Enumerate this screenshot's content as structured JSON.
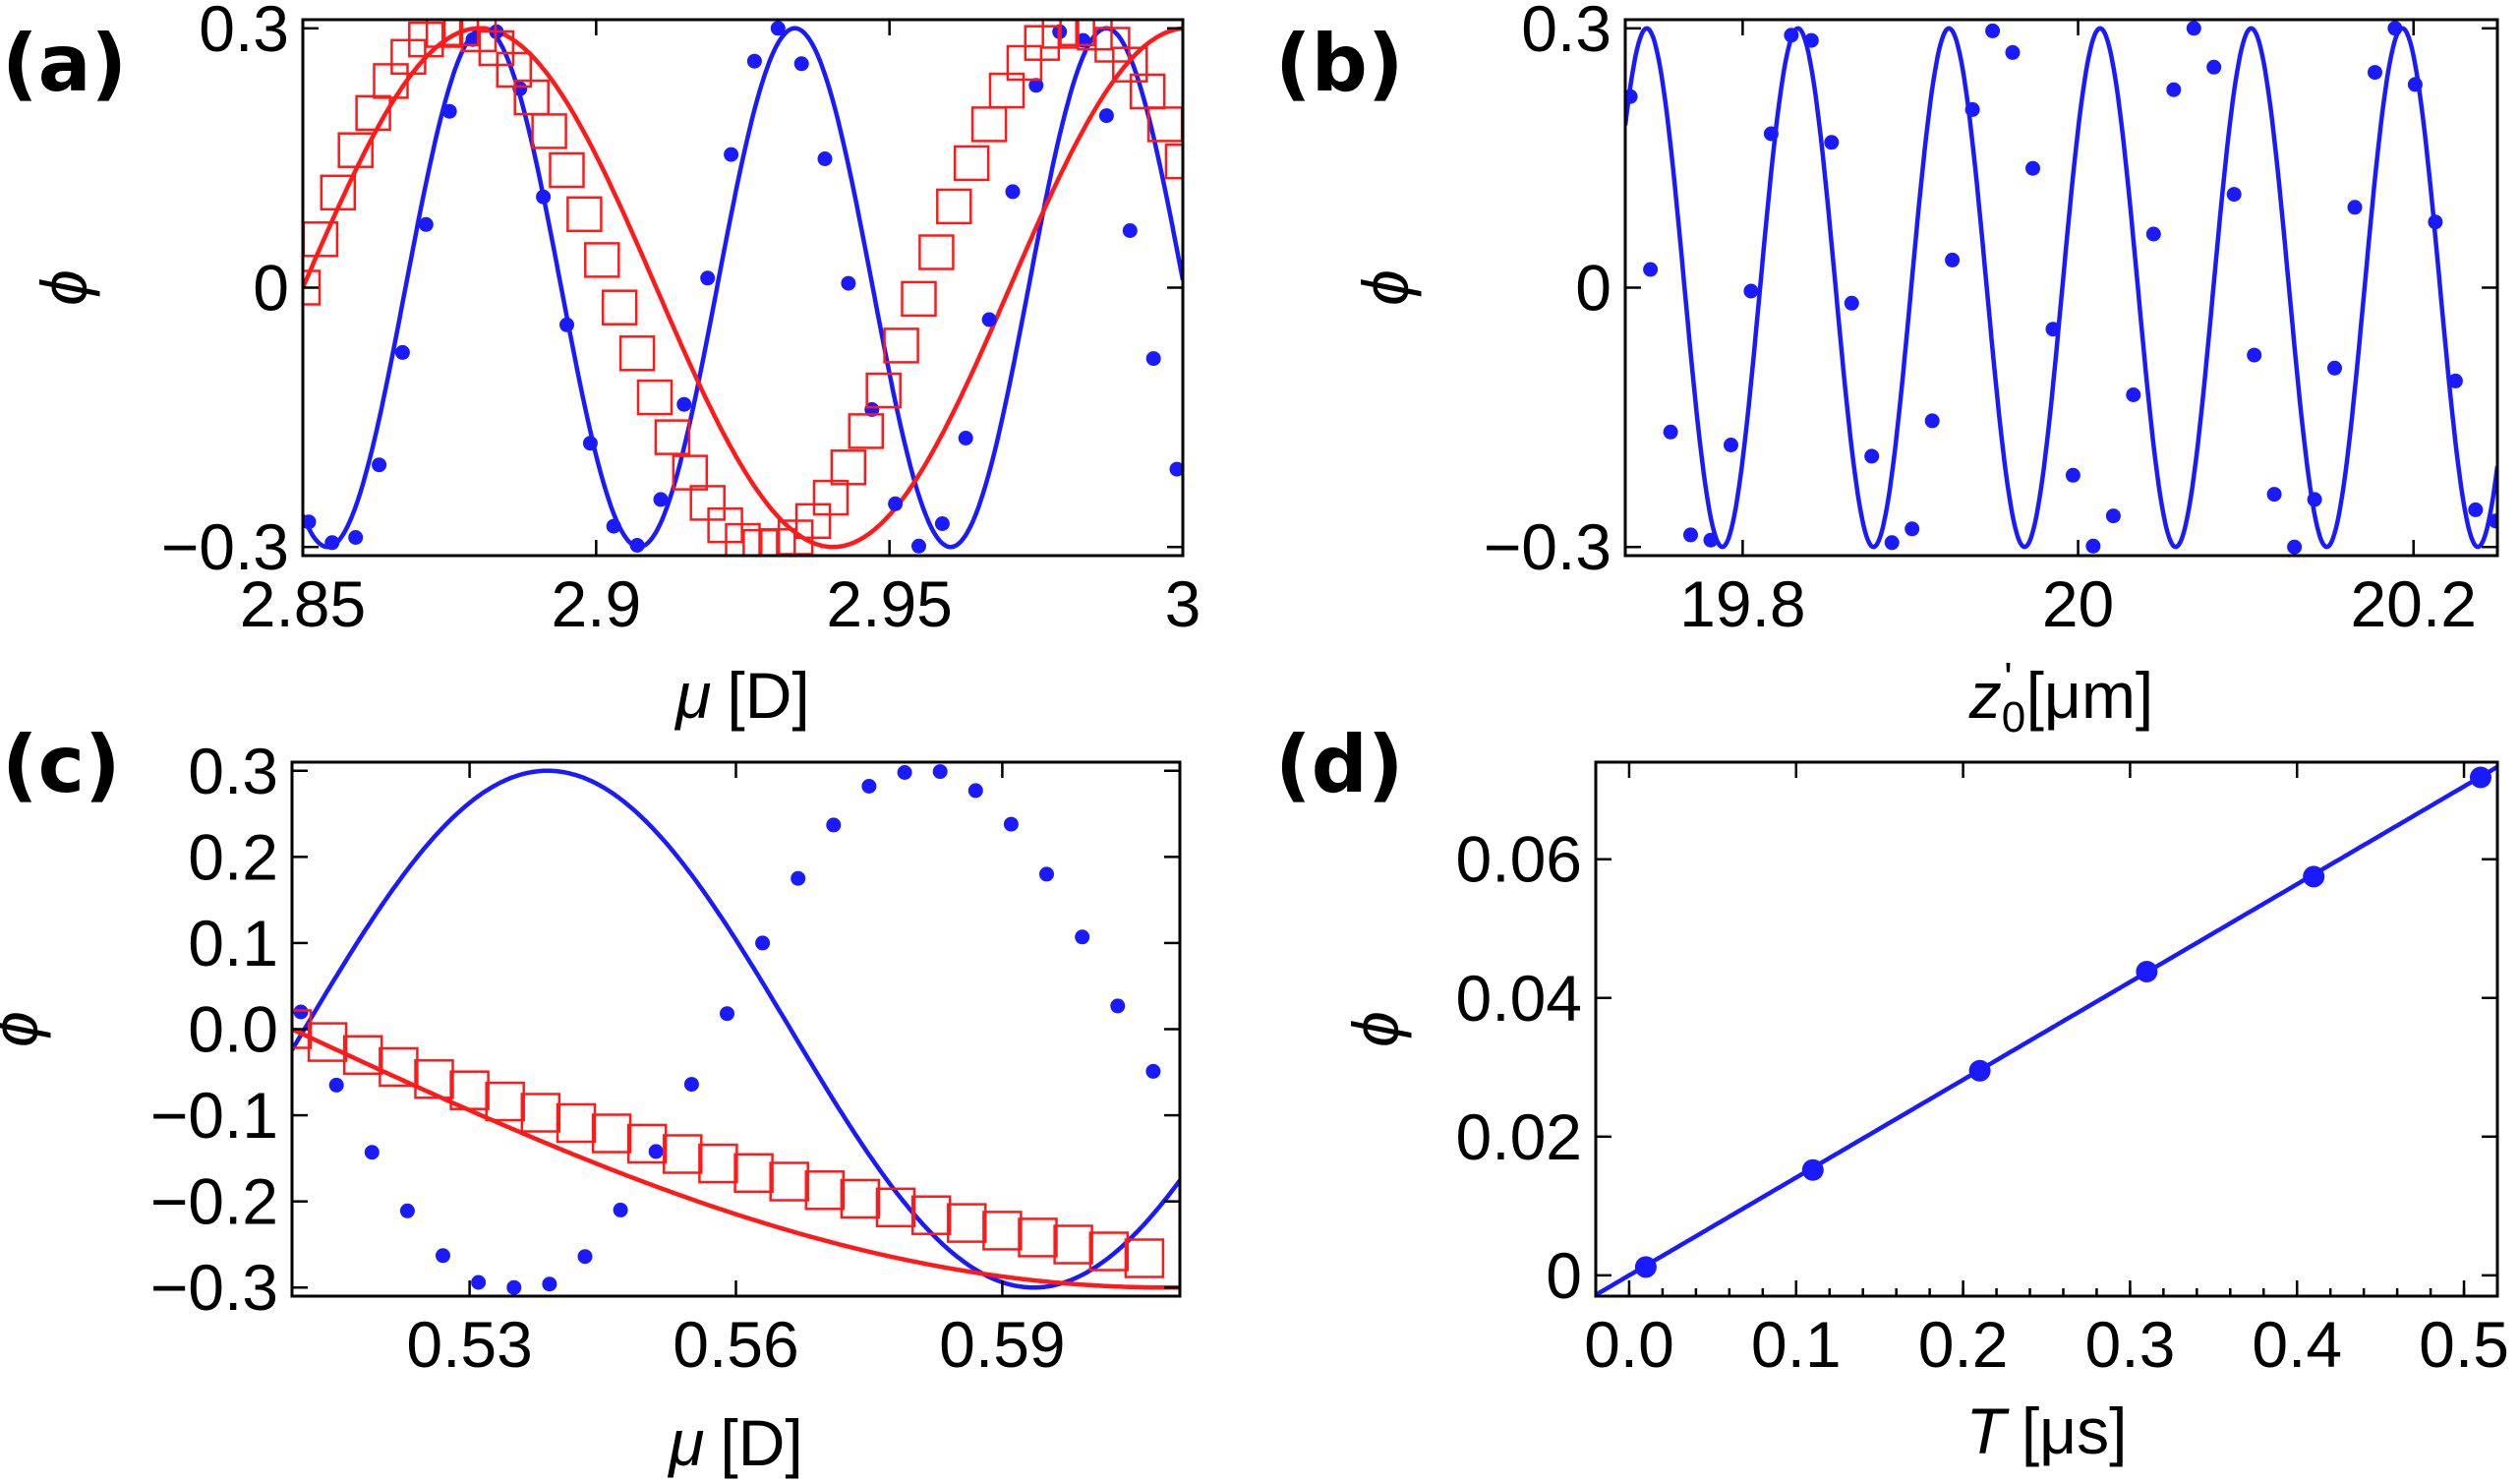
{
  "colors": {
    "blue": "#1a1aff",
    "red": "#ff1a1a",
    "axis": "#000000"
  },
  "chart_data": [
    {
      "id": "a",
      "panel_label": "(a)",
      "type": "line",
      "xlabel_symbol": "μ",
      "xlabel_unit": "[D]",
      "ylabel": "ϕ",
      "xlim": [
        2.85,
        3.0
      ],
      "ylim": [
        -0.31,
        0.31
      ],
      "xticks": [
        2.85,
        2.9,
        2.95,
        3.0
      ],
      "xtick_labels": [
        "2.85",
        "2.9",
        "2.95",
        "3"
      ],
      "yticks": [
        -0.3,
        0,
        0.3
      ],
      "ytick_labels": [
        "−0.3",
        "0",
        "0.3"
      ],
      "series": [
        {
          "name": "blue-dots",
          "color": "#1a1aff",
          "marker": "dot",
          "x": [
            2.851,
            2.855,
            2.859,
            2.863,
            2.867,
            2.871,
            2.875,
            2.879,
            2.883,
            2.887,
            2.891,
            2.895,
            2.899,
            2.903,
            2.907,
            2.911,
            2.915,
            2.919,
            2.923,
            2.927,
            2.931,
            2.935,
            2.939,
            2.943,
            2.947,
            2.951,
            2.955,
            2.959,
            2.963,
            2.967,
            2.971,
            2.975,
            2.979,
            2.983,
            2.987,
            2.991,
            2.995,
            2.999
          ],
          "y": [
            -0.271,
            -0.295,
            -0.289,
            -0.205,
            -0.075,
            0.073,
            0.204,
            0.287,
            0.296,
            0.23,
            0.105,
            -0.043,
            -0.18,
            -0.276,
            -0.298,
            -0.245,
            -0.135,
            0.011,
            0.154,
            0.262,
            0.3,
            0.259,
            0.149,
            0.005,
            -0.141,
            -0.25,
            -0.299,
            -0.273,
            -0.174,
            -0.037,
            0.111,
            0.234,
            0.296,
            0.286,
            0.199,
            0.066,
            -0.082,
            -0.21
          ]
        },
        {
          "name": "blue-fit",
          "color": "#1a1aff",
          "marker": "line",
          "model": "sine",
          "amplitude": 0.3,
          "period": 0.0531,
          "phase_x": 2.8675
        },
        {
          "name": "red-squares",
          "color": "#ff1a1a",
          "marker": "square",
          "x": [
            2.85,
            2.853,
            2.856,
            2.859,
            2.862,
            2.865,
            2.868,
            2.871,
            2.874,
            2.877,
            2.88,
            2.883,
            2.886,
            2.889,
            2.892,
            2.895,
            2.898,
            2.901,
            2.904,
            2.907,
            2.91,
            2.913,
            2.916,
            2.919,
            2.922,
            2.925,
            2.928,
            2.931,
            2.934,
            2.937,
            2.94,
            2.943,
            2.946,
            2.949,
            2.952,
            2.955,
            2.958,
            2.961,
            2.964,
            2.967,
            2.97,
            2.973,
            2.976,
            2.979,
            2.982,
            2.985,
            2.988,
            2.991,
            2.994,
            2.997,
            3.0
          ],
          "y": [
            0.0,
            0.056,
            0.11,
            0.159,
            0.202,
            0.239,
            0.267,
            0.287,
            0.298,
            0.3,
            0.293,
            0.277,
            0.252,
            0.22,
            0.181,
            0.136,
            0.085,
            0.032,
            -0.023,
            -0.076,
            -0.127,
            -0.173,
            -0.214,
            -0.249,
            -0.275,
            -0.293,
            -0.3,
            -0.299,
            -0.289,
            -0.27,
            -0.243,
            -0.208,
            -0.166,
            -0.119,
            -0.067,
            -0.013,
            0.041,
            0.094,
            0.144,
            0.189,
            0.228,
            0.26,
            0.283,
            0.297,
            0.3,
            0.295,
            0.281,
            0.258,
            0.227,
            0.189,
            0.146
          ]
        },
        {
          "name": "red-fit",
          "color": "#ff1a1a",
          "marker": "line",
          "model": "sine",
          "amplitude": 0.3,
          "period": 0.1205,
          "phase_x": 2.85
        }
      ]
    },
    {
      "id": "b",
      "panel_label": "(b)",
      "type": "line",
      "xlabel_symbol": "z",
      "xlabel_sub": "0",
      "xlabel_prime": "'",
      "xlabel_unit": "[μm]",
      "ylabel": "ϕ",
      "xlim": [
        19.73,
        20.25
      ],
      "ylim": [
        -0.31,
        0.31
      ],
      "xticks": [
        19.8,
        20.0,
        20.2
      ],
      "xtick_labels": [
        "19.8",
        "20",
        "20.2"
      ],
      "yticks": [
        -0.3,
        0,
        0.3
      ],
      "ytick_labels": [
        "−0.3",
        "0",
        "0.3"
      ],
      "series": [
        {
          "name": "blue-dots",
          "color": "#1a1aff",
          "marker": "dot",
          "x": [
            19.733,
            19.745,
            19.757,
            19.769,
            19.781,
            19.793,
            19.805,
            19.817,
            19.829,
            19.841,
            19.853,
            19.865,
            19.877,
            19.889,
            19.901,
            19.913,
            19.925,
            19.937,
            19.949,
            19.961,
            19.973,
            19.985,
            19.997,
            20.009,
            20.021,
            20.033,
            20.045,
            20.057,
            20.069,
            20.081,
            20.093,
            20.105,
            20.117,
            20.129,
            20.141,
            20.153,
            20.165,
            20.177,
            20.189,
            20.201,
            20.213,
            20.225,
            20.237,
            20.249
          ],
          "y": [
            0.221,
            0.021,
            -0.167,
            -0.286,
            -0.292,
            -0.182,
            -0.004,
            0.178,
            0.292,
            0.286,
            0.168,
            -0.018,
            -0.195,
            -0.295,
            -0.279,
            -0.154,
            0.032,
            0.206,
            0.297,
            0.272,
            0.138,
            -0.048,
            -0.217,
            -0.299,
            -0.264,
            -0.124,
            0.062,
            0.229,
            0.3,
            0.255,
            0.108,
            -0.078,
            -0.239,
            -0.3,
            -0.245,
            -0.093,
            0.093,
            0.249,
            0.3,
            0.235,
            0.076,
            -0.108,
            -0.257,
            -0.27
          ]
        },
        {
          "name": "blue-fit",
          "color": "#1a1aff",
          "marker": "line",
          "model": "sine",
          "amplitude": 0.3,
          "period": 0.0901,
          "phase_x": 19.8104
        }
      ]
    },
    {
      "id": "c",
      "panel_label": "(c)",
      "type": "line",
      "xlabel_symbol": "μ",
      "xlabel_unit": "[D]",
      "ylabel": "ϕ",
      "xlim": [
        0.51,
        0.61
      ],
      "ylim": [
        -0.31,
        0.31
      ],
      "xticks": [
        0.53,
        0.56,
        0.59
      ],
      "xtick_labels": [
        "0.53",
        "0.56",
        "0.59"
      ],
      "yticks": [
        -0.3,
        -0.2,
        -0.1,
        0.0,
        0.1,
        0.2,
        0.3
      ],
      "ytick_labels": [
        "−0.3",
        "−0.2",
        "−0.1",
        "0.0",
        "0.1",
        "0.2",
        "0.3"
      ],
      "series": [
        {
          "name": "blue-dots",
          "color": "#1a1aff",
          "marker": "dot",
          "x": [
            0.511,
            0.515,
            0.519,
            0.523,
            0.527,
            0.531,
            0.535,
            0.539,
            0.543,
            0.547,
            0.551,
            0.555,
            0.559,
            0.563,
            0.567,
            0.571,
            0.575,
            0.579,
            0.583,
            0.587,
            0.591,
            0.595,
            0.599,
            0.603,
            0.607
          ],
          "y": [
            0.02,
            -0.065,
            -0.143,
            -0.211,
            -0.263,
            -0.294,
            -0.3,
            -0.296,
            -0.264,
            -0.21,
            -0.142,
            -0.064,
            0.018,
            0.1,
            0.175,
            0.237,
            0.282,
            0.298,
            0.299,
            0.277,
            0.238,
            0.18,
            0.107,
            0.027,
            -0.049
          ]
        },
        {
          "name": "blue-fit",
          "color": "#1a1aff",
          "marker": "line",
          "model": "sine",
          "amplitude": 0.3,
          "period": 0.1095,
          "phase_x": 0.5114
        },
        {
          "name": "red-squares",
          "color": "#ff1a1a",
          "marker": "square",
          "x": [
            0.51,
            0.514,
            0.518,
            0.522,
            0.526,
            0.53,
            0.534,
            0.538,
            0.542,
            0.546,
            0.55,
            0.554,
            0.558,
            0.562,
            0.566,
            0.57,
            0.574,
            0.578,
            0.582,
            0.586,
            0.59,
            0.594,
            0.598,
            0.602,
            0.606
          ],
          "y": [
            0.0,
            -0.015,
            -0.03,
            -0.044,
            -0.058,
            -0.071,
            -0.084,
            -0.097,
            -0.109,
            -0.121,
            -0.133,
            -0.145,
            -0.156,
            -0.167,
            -0.177,
            -0.187,
            -0.197,
            -0.207,
            -0.216,
            -0.225,
            -0.234,
            -0.242,
            -0.25,
            -0.258,
            -0.266
          ]
        },
        {
          "name": "red-fit",
          "color": "#ff1a1a",
          "marker": "line",
          "model": "sine",
          "amplitude": -0.3,
          "period": 0.3935,
          "phase_x": 0.51
        }
      ]
    },
    {
      "id": "d",
      "panel_label": "(d)",
      "type": "line",
      "xlabel_symbol": "T",
      "xlabel_unit": "[μs]",
      "ylabel": "ϕ",
      "xlim": [
        -0.02,
        0.52
      ],
      "ylim": [
        -0.003,
        0.074
      ],
      "xticks": [
        0.0,
        0.1,
        0.2,
        0.3,
        0.4,
        0.5
      ],
      "xtick_labels": [
        "0.0",
        "0.1",
        "0.2",
        "0.3",
        "0.4",
        "0.5"
      ],
      "yticks": [
        0.0,
        0.02,
        0.04,
        0.06
      ],
      "ytick_labels": [
        "0",
        "0.02",
        "0.04",
        "0.06"
      ],
      "series": [
        {
          "name": "blue-dots",
          "color": "#1a1aff",
          "marker": "dot",
          "x": [
            0.01,
            0.11,
            0.21,
            0.31,
            0.41,
            0.51
          ],
          "y": [
            0.0012,
            0.0152,
            0.0295,
            0.0438,
            0.0575,
            0.0718
          ]
        },
        {
          "name": "blue-fit",
          "color": "#1a1aff",
          "marker": "line",
          "model": "linear",
          "slope": 0.141,
          "intercept": 0.0
        }
      ]
    }
  ]
}
